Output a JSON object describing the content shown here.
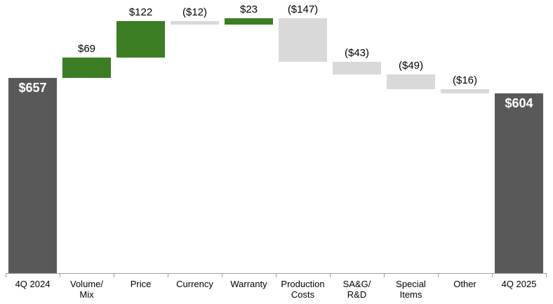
{
  "chart_data": {
    "type": "bar",
    "subtype": "waterfall",
    "title": "",
    "grid": false,
    "legend": null,
    "ylim": [
      0,
      880
    ],
    "categories": [
      "4Q 2024",
      "Volume/ Mix",
      "Price",
      "Currency",
      "Warranty",
      "Production Costs",
      "SA&G/ R&D",
      "Special Items",
      "Other",
      "4Q 2025"
    ],
    "axis_labels": [
      [
        "4Q 2024"
      ],
      [
        "Volume/",
        "Mix"
      ],
      [
        "Price"
      ],
      [
        "Currency"
      ],
      [
        "Warranty"
      ],
      [
        "Production",
        "Costs"
      ],
      [
        "SA&G/",
        "R&D"
      ],
      [
        "Special",
        "Items"
      ],
      [
        "Other"
      ],
      [
        "4Q 2025"
      ]
    ],
    "bars": [
      {
        "category": "4Q 2024",
        "label": "$657",
        "value": 657,
        "kind": "total",
        "start": 0,
        "end": 657
      },
      {
        "category": "Volume/ Mix",
        "label": "$69",
        "value": 69,
        "kind": "increase",
        "start": 657,
        "end": 726
      },
      {
        "category": "Price",
        "label": "$122",
        "value": 122,
        "kind": "increase",
        "start": 726,
        "end": 848
      },
      {
        "category": "Currency",
        "label": "($12)",
        "value": -12,
        "kind": "decrease",
        "start": 848,
        "end": 836
      },
      {
        "category": "Warranty",
        "label": "$23",
        "value": 23,
        "kind": "increase",
        "start": 836,
        "end": 859
      },
      {
        "category": "Production Costs",
        "label": "($147)",
        "value": -147,
        "kind": "decrease",
        "start": 859,
        "end": 712
      },
      {
        "category": "SA&G/ R&D",
        "label": "($43)",
        "value": -43,
        "kind": "decrease",
        "start": 712,
        "end": 669
      },
      {
        "category": "Special Items",
        "label": "($49)",
        "value": -49,
        "kind": "decrease",
        "start": 669,
        "end": 620
      },
      {
        "category": "Other",
        "label": "($16)",
        "value": -16,
        "kind": "decrease",
        "start": 620,
        "end": 604
      },
      {
        "category": "4Q 2025",
        "label": "$604",
        "value": 604,
        "kind": "total",
        "start": 0,
        "end": 604
      }
    ],
    "colors": {
      "total": "#595959",
      "increase": "#3a7d23",
      "decrease": "#d9d9d9",
      "axis": "#9e9e9e",
      "value_label": "#000000",
      "total_label": "#ffffff",
      "background": "#ffffff"
    }
  }
}
